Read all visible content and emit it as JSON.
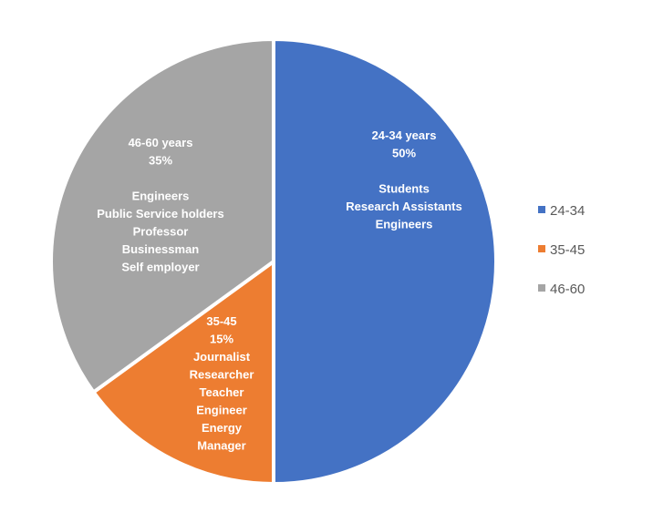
{
  "chart_data": {
    "type": "pie",
    "categories": [
      "24-34",
      "35-45",
      "46-60"
    ],
    "values": [
      50,
      15,
      35
    ],
    "colors": [
      "#4472C4",
      "#ED7D31",
      "#A5A5A5"
    ],
    "data_labels": [
      [
        "24-34 years",
        "50%",
        "",
        "Students",
        "Research Assistants",
        "Engineers"
      ],
      [
        "35-45",
        "15%",
        "Journalist",
        "Researcher",
        "Teacher",
        "Engineer",
        "Energy",
        "Manager"
      ],
      [
        "46-60 years",
        "35%",
        "",
        "Engineers",
        "Public Service holders",
        "Professor",
        "Businessman",
        "Self employer"
      ]
    ],
    "legend_position": "right",
    "start_angle_deg": 0,
    "direction": "clockwise"
  }
}
